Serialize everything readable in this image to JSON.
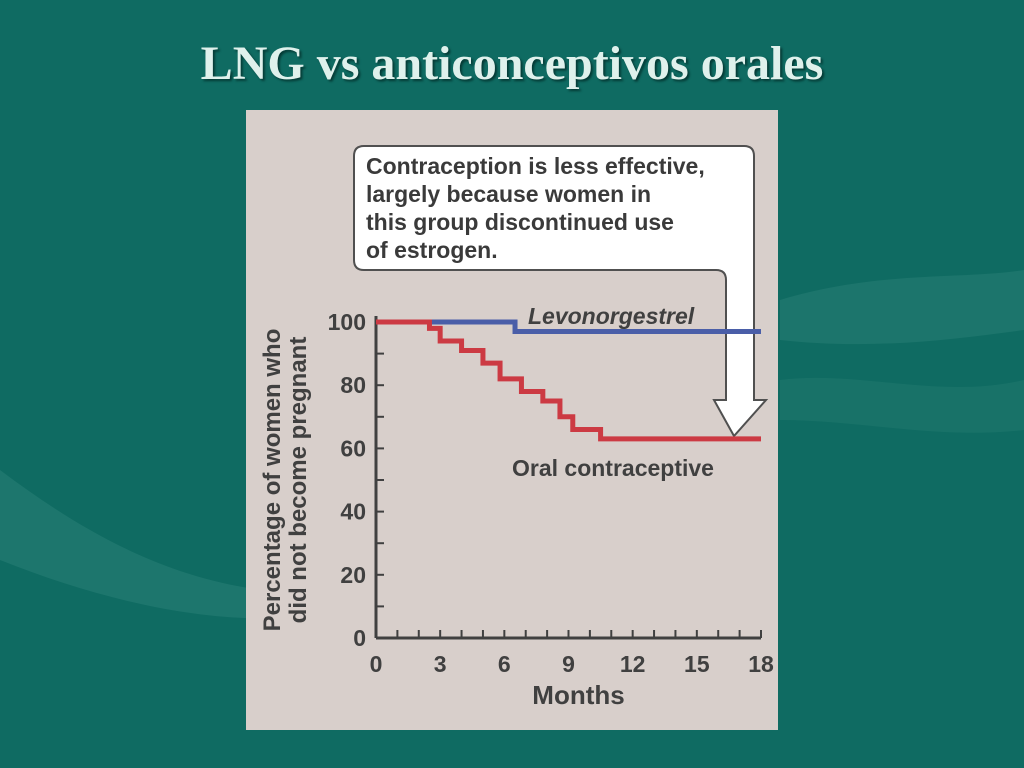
{
  "slide": {
    "title": "LNG vs anticonceptivos orales"
  },
  "callout": "Contraception is less effective,\nlargely because women in\nthis group discontinued use\nof estrogen.",
  "colors": {
    "background": "#0f6b62",
    "panel": "#d8cfcb",
    "levonorgestrel": "#4a5ea8",
    "oral_contraceptive": "#cc3a43",
    "axis": "#404040"
  },
  "chart_data": {
    "type": "line",
    "xlabel": "Months",
    "ylabel": "Percentage of women who\ndid not become pregnant",
    "xlim": [
      0,
      18
    ],
    "ylim": [
      0,
      100
    ],
    "x_ticks": [
      0,
      3,
      6,
      9,
      12,
      15,
      18
    ],
    "y_ticks": [
      0,
      20,
      40,
      60,
      80,
      100
    ],
    "grid": false,
    "series": [
      {
        "name": "Levonorgestrel",
        "step": true,
        "x": [
          0,
          6.5,
          18
        ],
        "y": [
          100,
          97,
          97
        ]
      },
      {
        "name": "Oral contraceptive",
        "step": true,
        "x": [
          0,
          2.5,
          3,
          4,
          5,
          5.8,
          6.8,
          7.8,
          8.6,
          9.2,
          10.5,
          18
        ],
        "y": [
          100,
          98,
          94,
          91,
          87,
          82,
          78,
          75,
          70,
          66,
          63,
          63
        ]
      }
    ]
  }
}
